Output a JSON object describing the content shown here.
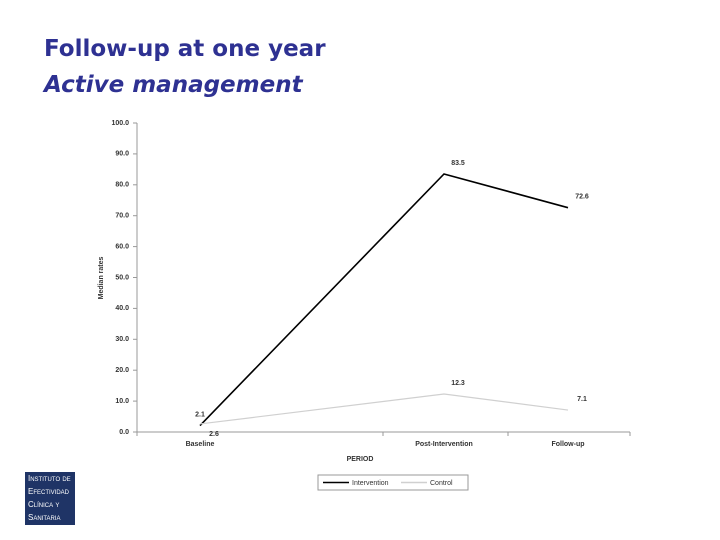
{
  "chart_data": {
    "type": "line",
    "slide_title": "Follow-up at one year",
    "slide_subtitle": "Active management",
    "x_label": "PERIOD",
    "y_label": "Median rates",
    "categories": [
      "Baseline",
      "Post-Intervention",
      "Follow-up"
    ],
    "series": [
      {
        "name": "Intervention",
        "color": "#000000",
        "values": [
          2.1,
          83.5,
          72.6
        ]
      },
      {
        "name": "Control",
        "color": "#d0d0d0",
        "values": [
          2.6,
          12.3,
          7.1
        ]
      }
    ],
    "ylim": [
      0,
      100
    ],
    "yticks": [
      {
        "value": 0,
        "label": "0.0"
      },
      {
        "value": 10,
        "label": "10.0"
      },
      {
        "value": 20,
        "label": "20.0"
      },
      {
        "value": 30,
        "label": "30.0"
      },
      {
        "value": 40,
        "label": "40.0"
      },
      {
        "value": 50,
        "label": "50.0"
      },
      {
        "value": 60,
        "label": "60.0"
      },
      {
        "value": 70,
        "label": "70.0"
      },
      {
        "value": 80,
        "label": "80.0"
      },
      {
        "value": 90,
        "label": "90.0"
      },
      {
        "value": 100,
        "label": "100.0"
      }
    ],
    "grid": false,
    "legend": "bottom"
  },
  "logo": {
    "lines": [
      "Instituto de",
      "Efectividad",
      "Clínica y",
      "Sanitaria"
    ]
  }
}
